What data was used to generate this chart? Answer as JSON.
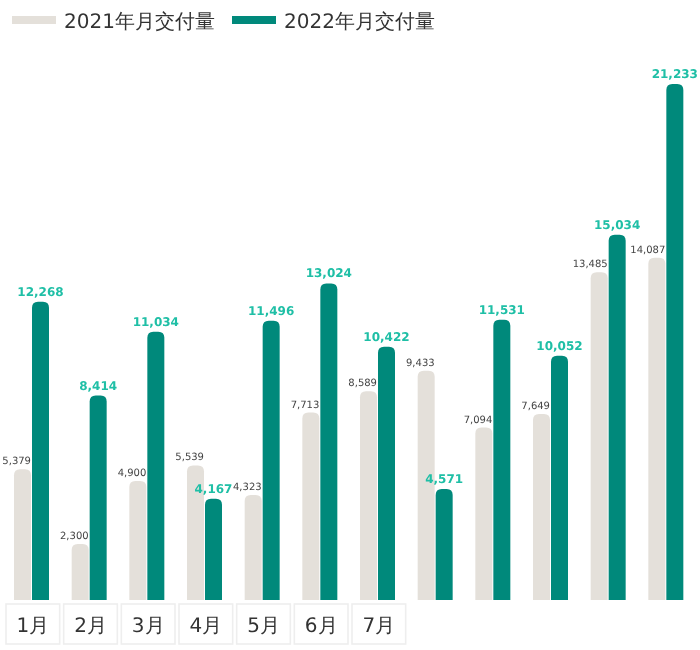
{
  "chart_data": {
    "type": "bar",
    "categories": [
      "1月",
      "2月",
      "3月",
      "4月",
      "5月",
      "6月",
      "7月",
      null,
      null,
      null,
      null,
      null
    ],
    "series": [
      {
        "name": "2021年月交付量",
        "color": "#e4e0da",
        "values": [
          5379,
          2300,
          4900,
          5539,
          4323,
          7713,
          8589,
          9433,
          7094,
          7649,
          13485,
          14087
        ],
        "value_labels": [
          "5,379",
          "2,300",
          "4,900",
          "5,539",
          "4,323",
          "7,713",
          "8,589",
          "9,433",
          "7,094",
          "7,649",
          "13,485",
          "14,087"
        ]
      },
      {
        "name": "2022年月交付量",
        "color": "#00897b",
        "values": [
          12268,
          8414,
          11034,
          4167,
          11496,
          13024,
          10422,
          4571,
          11531,
          10052,
          15034,
          21233
        ],
        "value_labels": [
          "12,268",
          "8,414",
          "11,034",
          "4,167",
          "11,496",
          "13,024",
          "10,422",
          "4,571",
          "11,531",
          "10,052",
          "15,034",
          "21,233"
        ]
      }
    ],
    "legend": "top left"
  }
}
